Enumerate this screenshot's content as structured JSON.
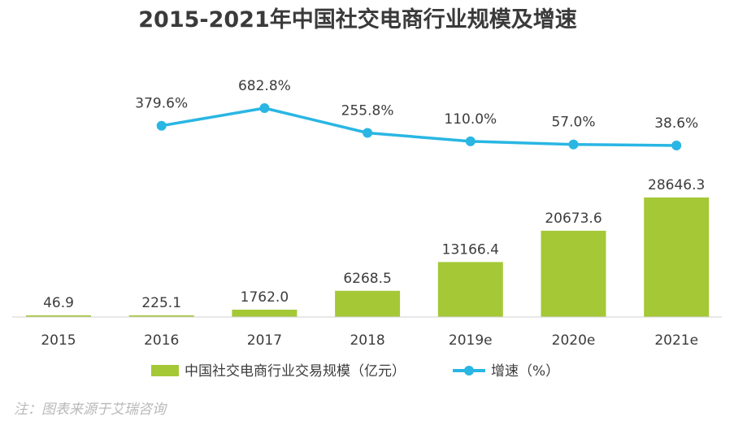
{
  "chart_data": {
    "type": "bar+line",
    "title": "2015-2021年中国社交电商行业规模及增速",
    "categories": [
      "2015",
      "2016",
      "2017",
      "2018",
      "2019e",
      "2020e",
      "2021e"
    ],
    "series": [
      {
        "name": "中国社交电商行业交易规模（亿元）",
        "type": "bar",
        "values": [
          46.9,
          225.1,
          1762.0,
          6268.5,
          13166.4,
          20673.6,
          28646.3
        ],
        "labels": [
          "46.9",
          "225.1",
          "1762.0",
          "6268.5",
          "13166.4",
          "20673.6",
          "28646.3"
        ],
        "color": "#a5c837"
      },
      {
        "name": "增速（%）",
        "type": "line",
        "values": [
          null,
          379.6,
          682.8,
          255.8,
          110.0,
          57.0,
          38.6
        ],
        "labels": [
          "",
          "379.6%",
          "682.8%",
          "255.8%",
          "110.0%",
          "57.0%",
          "38.6%"
        ],
        "color": "#29b6e3"
      }
    ],
    "legend_position": "bottom",
    "grid": false
  },
  "footnote": "注：图表来源于艾瑞咨询"
}
